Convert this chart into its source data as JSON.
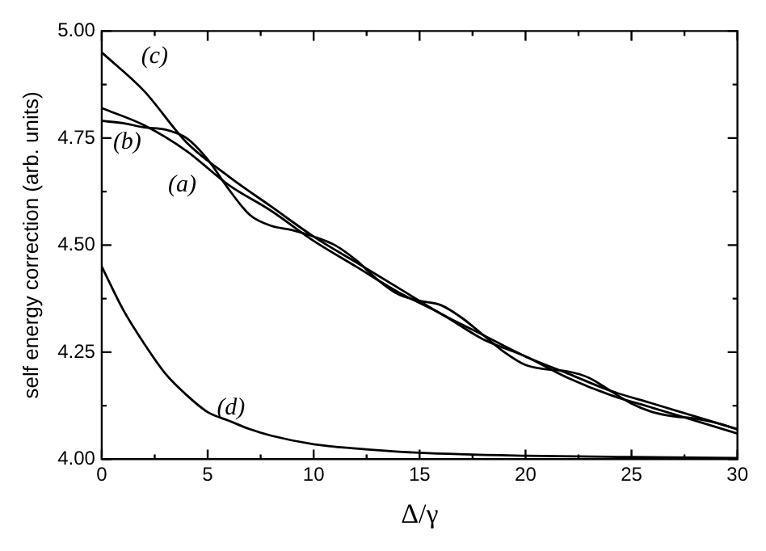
{
  "chart_data": {
    "type": "line",
    "xlabel": "Δ/γ",
    "ylabel": "self energy correction (arb. units)",
    "xlim": [
      0,
      30
    ],
    "ylim": [
      4.0,
      5.0
    ],
    "xticks": [
      0,
      {
        "value": 2.5,
        "label": null
      },
      5,
      {
        "value": 7.5,
        "label": null
      },
      10,
      {
        "value": 12.5,
        "label": null
      },
      15,
      {
        "value": 17.5,
        "label": null
      },
      20,
      {
        "value": 22.5,
        "label": null
      },
      25,
      {
        "value": 27.5,
        "label": null
      },
      30
    ],
    "yticks": [
      {
        "value": 4.0,
        "label": "4.00"
      },
      {
        "value": 4.125,
        "label": null
      },
      {
        "value": 4.25,
        "label": "4.25"
      },
      {
        "value": 4.375,
        "label": null
      },
      {
        "value": 4.5,
        "label": "4.50"
      },
      {
        "value": 4.625,
        "label": null
      },
      {
        "value": 4.75,
        "label": "4.75"
      },
      {
        "value": 4.875,
        "label": null
      },
      {
        "value": 5.0,
        "label": "5.00"
      }
    ],
    "grid": false,
    "marker": "none",
    "line_style": "solid",
    "series": [
      {
        "name": "(c)",
        "color": "#000000",
        "x": [
          0,
          2,
          4,
          6,
          8,
          10,
          12,
          14,
          16,
          18,
          20,
          22,
          24,
          26,
          28,
          30
        ],
        "values": [
          4.95,
          4.86,
          4.74,
          4.66,
          4.59,
          4.52,
          4.46,
          4.4,
          4.34,
          4.29,
          4.24,
          4.2,
          4.16,
          4.13,
          4.1,
          4.07
        ]
      },
      {
        "name": "(b)",
        "color": "#000000",
        "x": [
          0,
          2,
          4,
          6,
          8,
          10,
          12,
          14,
          16,
          18,
          20,
          22,
          24,
          26,
          28,
          30
        ],
        "values": [
          4.82,
          4.78,
          4.72,
          4.64,
          4.58,
          4.51,
          4.45,
          4.39,
          4.34,
          4.28,
          4.24,
          4.19,
          4.15,
          4.12,
          4.09,
          4.06
        ]
      },
      {
        "name": "(a)",
        "color": "#000000",
        "x": [
          0,
          1,
          2,
          3,
          4,
          5,
          6,
          7,
          8,
          9,
          10,
          11,
          12,
          13,
          14,
          15,
          16,
          17,
          18,
          19,
          20,
          21,
          22,
          23,
          24,
          25,
          26,
          27,
          28,
          29,
          30
        ],
        "values": [
          4.79,
          4.785,
          4.775,
          4.77,
          4.75,
          4.7,
          4.63,
          4.57,
          4.545,
          4.535,
          4.52,
          4.5,
          4.465,
          4.42,
          4.385,
          4.37,
          4.36,
          4.33,
          4.29,
          4.25,
          4.22,
          4.21,
          4.205,
          4.19,
          4.16,
          4.13,
          4.11,
          4.1,
          4.095,
          4.085,
          4.07
        ]
      },
      {
        "name": "(d)",
        "color": "#000000",
        "x": [
          0,
          1,
          2,
          3,
          4,
          5,
          6,
          7,
          8,
          10,
          12,
          15,
          20,
          25,
          30
        ],
        "values": [
          4.45,
          4.35,
          4.27,
          4.2,
          4.15,
          4.11,
          4.09,
          4.07,
          4.055,
          4.035,
          4.025,
          4.015,
          4.008,
          4.005,
          4.003
        ]
      }
    ]
  }
}
